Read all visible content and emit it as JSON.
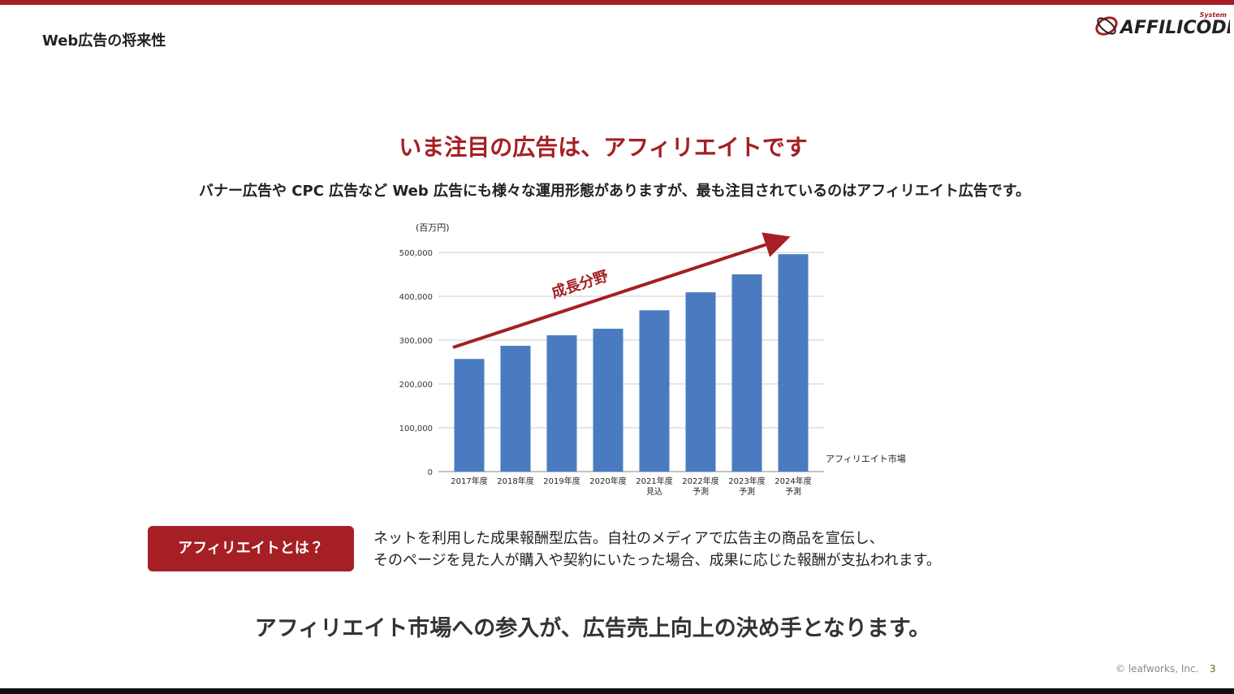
{
  "header": {
    "title": "Web広告の将来性",
    "logo": "AFFILICODE",
    "logo_sub": "System"
  },
  "headline": "いま注目の広告は、アフィリエイトです",
  "subtitle": "バナー広告や CPC 広告など Web 広告にも様々な運用形態がありますが、最も注目されているのはアフィリエイト広告です。",
  "chart_data": {
    "type": "bar",
    "unit_label": "(百万円)",
    "annotation": "成長分野",
    "categories": [
      "2017年度",
      "2018年度",
      "2019年度",
      "2020年度",
      "2021年度\n見込",
      "2022年度\n予測",
      "2023年度\n予測",
      "2024年度\n予測"
    ],
    "series": [
      {
        "name": "アフィリエイト市場",
        "color": "#4a7bc0",
        "values": [
          257000,
          287000,
          311000,
          326000,
          368000,
          409000,
          450000,
          496000
        ]
      }
    ],
    "ylim": [
      0,
      500000
    ],
    "yticks": [
      0,
      {
        "value": 100000,
        "label": "100,000"
      },
      {
        "value": 200000,
        "label": "200,000"
      },
      {
        "value": 300000,
        "label": "300,000"
      },
      {
        "value": 400000,
        "label": "400,000"
      },
      {
        "value": 500000,
        "label": "500,000"
      }
    ],
    "grid": true
  },
  "definition": {
    "label": "アフィリエイトとは？",
    "lines": [
      "ネットを利用した成果報酬型広告。自社のメディアで広告主の商品を宣伝し、",
      "そのページを見た人が購入や契約にいたった場合、成果に応じた報酬が支払われます。"
    ]
  },
  "conclusion": "アフィリエイト市場への参入が、広告売上向上の決め手となります。",
  "footer": {
    "copyright": "© leafworks, Inc.",
    "page": "3"
  }
}
